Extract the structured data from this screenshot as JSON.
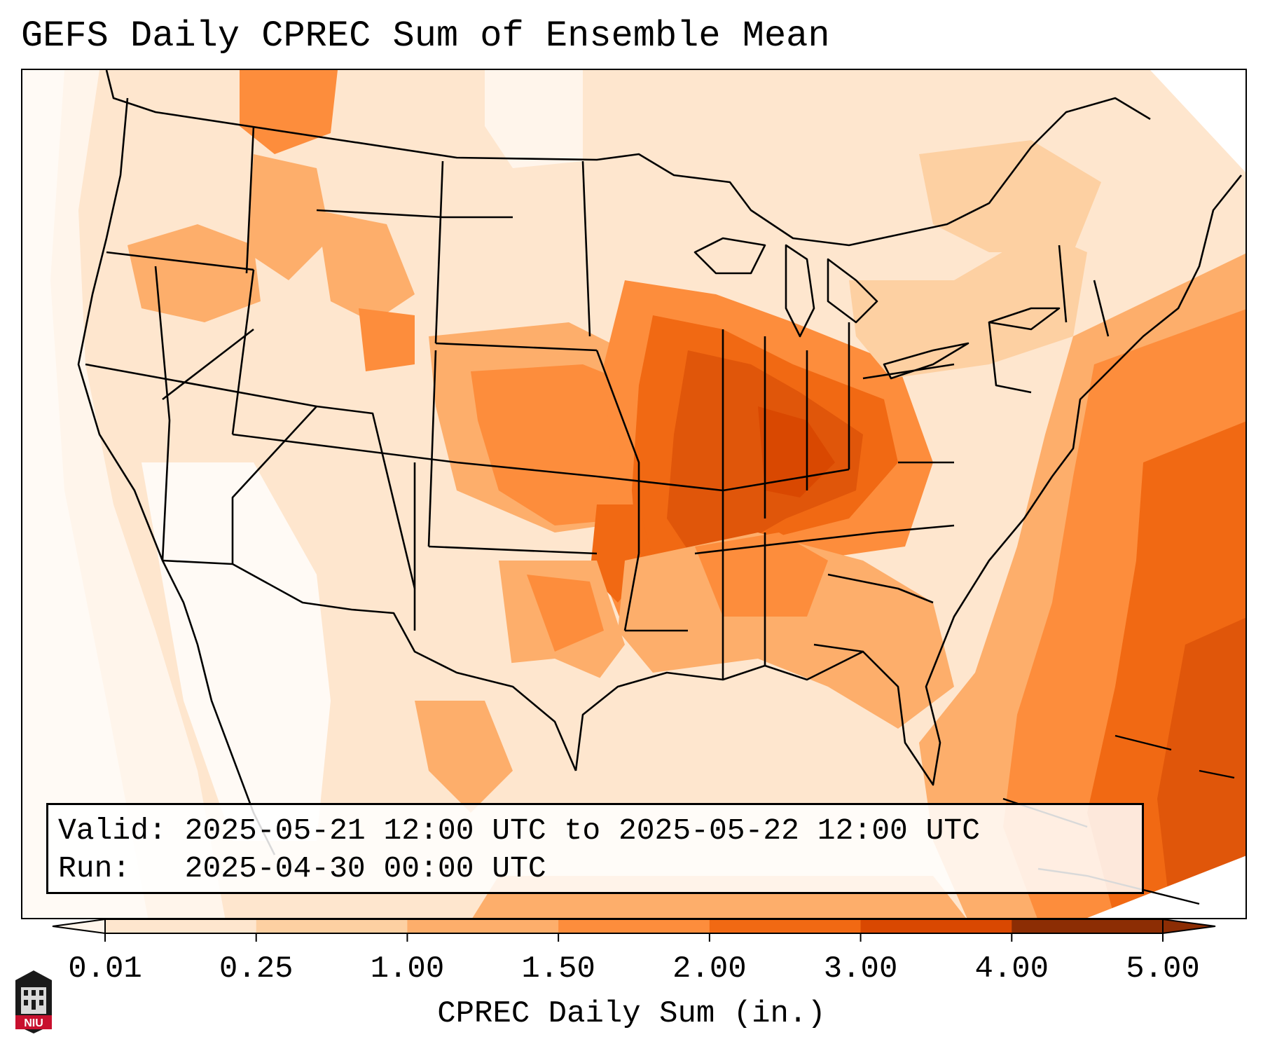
{
  "title": "GEFS Daily CPREC Sum of Ensemble Mean",
  "valid_label": "Valid:",
  "valid_text": "2025-05-21 12:00 UTC to 2025-05-22 12:00 UTC",
  "run_label": "Run:",
  "run_text": "2025-04-30 00:00 UTC",
  "colorbar": {
    "label": "CPREC Daily Sum (in.)",
    "ticks": [
      "0.01",
      "0.25",
      "1.00",
      "1.50",
      "2.00",
      "3.00",
      "4.00",
      "5.00"
    ],
    "colors": [
      "#fff5eb",
      "#fee6ce",
      "#fdd0a2",
      "#fdae6b",
      "#fd8d3c",
      "#f16913",
      "#d94801",
      "#8c2d04"
    ]
  },
  "logo_text": "NIU"
}
